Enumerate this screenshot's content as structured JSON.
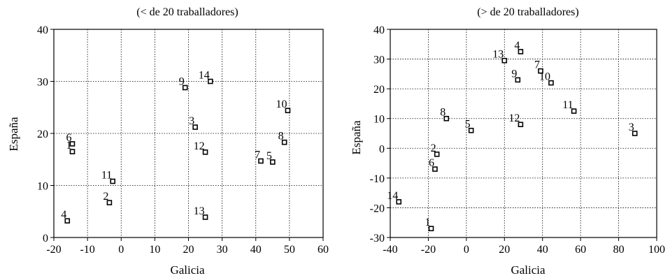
{
  "chart_data": [
    {
      "type": "scatter",
      "title": "(< de 20 traballadores)",
      "xlabel": "Galicia",
      "ylabel": "España",
      "xlim": [
        -20,
        60
      ],
      "ylim": [
        0,
        40
      ],
      "xticks": [
        -20,
        -10,
        0,
        10,
        20,
        30,
        40,
        50,
        60
      ],
      "yticks": [
        0,
        10,
        20,
        30,
        40
      ],
      "grid": true,
      "points": [
        {
          "label": "1",
          "x": -14.5,
          "y": 16.5
        },
        {
          "label": "2",
          "x": -3.5,
          "y": 6.7
        },
        {
          "label": "3",
          "x": 22,
          "y": 21.2
        },
        {
          "label": "4",
          "x": -16,
          "y": 3.2
        },
        {
          "label": "5",
          "x": 45,
          "y": 14.5
        },
        {
          "label": "6",
          "x": -14.5,
          "y": 18
        },
        {
          "label": "7",
          "x": 41.5,
          "y": 14.7
        },
        {
          "label": "8",
          "x": 48.5,
          "y": 18.3
        },
        {
          "label": "9",
          "x": 19,
          "y": 28.8
        },
        {
          "label": "10",
          "x": 49.5,
          "y": 24.4
        },
        {
          "label": "11",
          "x": -2.5,
          "y": 10.8
        },
        {
          "label": "12",
          "x": 25,
          "y": 16.4
        },
        {
          "label": "13",
          "x": 25,
          "y": 3.9
        },
        {
          "label": "14",
          "x": 26.5,
          "y": 30
        }
      ]
    },
    {
      "type": "scatter",
      "title": "(> de 20 traballadores)",
      "xlabel": "Galicia",
      "ylabel": "España",
      "xlim": [
        -40,
        100
      ],
      "ylim": [
        -30,
        40
      ],
      "xticks": [
        -40,
        -20,
        0,
        20,
        40,
        60,
        80,
        100
      ],
      "yticks": [
        -30,
        -20,
        -10,
        0,
        10,
        20,
        30,
        40
      ],
      "grid": true,
      "points": [
        {
          "label": "1",
          "x": -18.5,
          "y": -27
        },
        {
          "label": "2",
          "x": -15.5,
          "y": -2
        },
        {
          "label": "3",
          "x": 88.5,
          "y": 5
        },
        {
          "label": "4",
          "x": 28.5,
          "y": 32.5
        },
        {
          "label": "5",
          "x": 2.5,
          "y": 6
        },
        {
          "label": "6",
          "x": -16.5,
          "y": -7
        },
        {
          "label": "7",
          "x": 39,
          "y": 26
        },
        {
          "label": "8",
          "x": -10.5,
          "y": 10
        },
        {
          "label": "9",
          "x": 27,
          "y": 23
        },
        {
          "label": "10",
          "x": 44.5,
          "y": 22
        },
        {
          "label": "11",
          "x": 56.5,
          "y": 12.5
        },
        {
          "label": "12",
          "x": 28.5,
          "y": 8
        },
        {
          "label": "13",
          "x": 20,
          "y": 29.5
        },
        {
          "label": "14",
          "x": -35.5,
          "y": -18
        }
      ]
    }
  ]
}
